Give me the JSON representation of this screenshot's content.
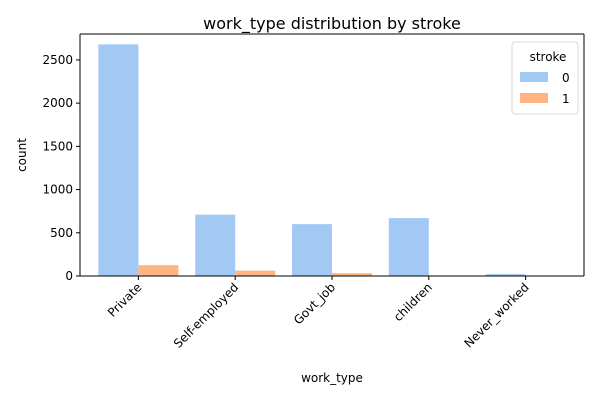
{
  "chart_data": {
    "type": "bar",
    "title": "work_type distribution by stroke",
    "xlabel": "work_type",
    "ylabel": "count",
    "categories": [
      "Private",
      "Self-employed",
      "Govt_job",
      "children",
      "Never_worked"
    ],
    "series": [
      {
        "name": "0",
        "color": "#a1c9f4",
        "values": [
          2680,
          710,
          600,
          670,
          22
        ]
      },
      {
        "name": "1",
        "color": "#ffb482",
        "values": [
          125,
          62,
          33,
          3,
          0
        ]
      }
    ],
    "ylim": [
      0,
      2800
    ],
    "yticks": [
      0,
      500,
      1000,
      1500,
      2000,
      2500
    ],
    "legend": {
      "title": "stroke",
      "position": "top-right"
    },
    "grid": false
  }
}
